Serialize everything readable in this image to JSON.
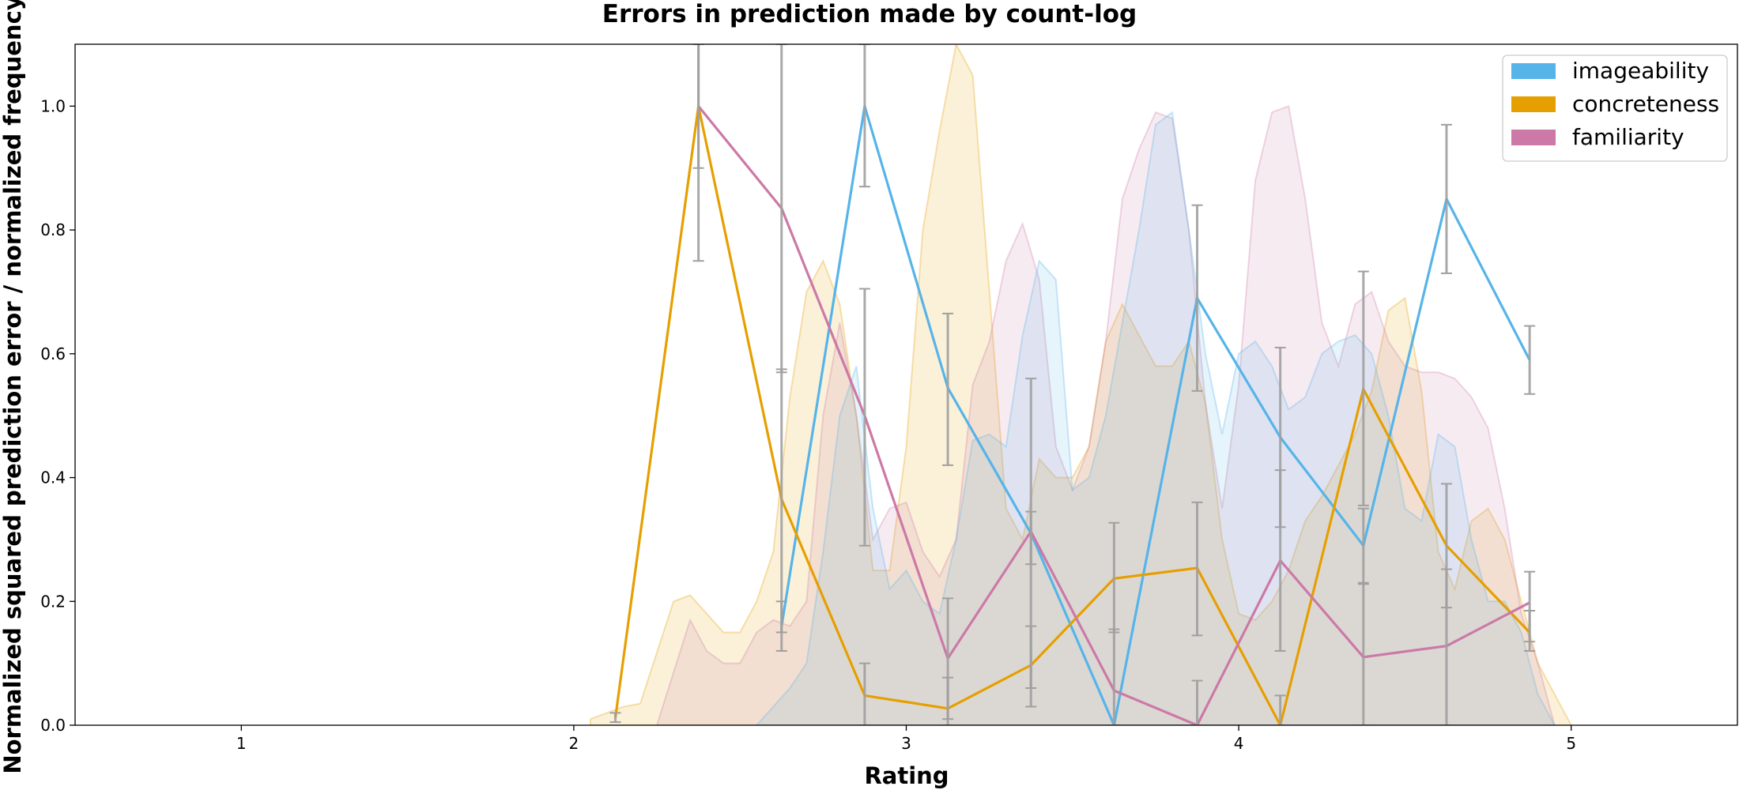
{
  "chart_data": {
    "type": "line",
    "title": "Errors in prediction made by count-log",
    "xlabel": "Rating",
    "ylabel": "Normalized squared prediction error / normalized frequency",
    "xlim": [
      0.5,
      5.5
    ],
    "ylim": [
      0,
      1.1
    ],
    "xticks": [
      "1",
      "2",
      "3",
      "4",
      "5"
    ],
    "xtick_values": [
      1,
      2,
      3,
      4,
      5
    ],
    "yticks": [
      "0.0",
      "0.2",
      "0.4",
      "0.6",
      "0.8",
      "1.0"
    ],
    "ytick_values": [
      0,
      0.2,
      0.4,
      0.6,
      0.8,
      1.0
    ],
    "legend_position": "top-right",
    "grid": false,
    "colors": {
      "imageability": "#56B4E9",
      "concreteness": "#E69F00",
      "familiarity": "#CC79A7",
      "errorbar": "#a0a0a0"
    },
    "series": [
      {
        "name": "imageability",
        "x": [
          2.625,
          2.875,
          3.125,
          3.375,
          3.625,
          3.875,
          4.125,
          4.375,
          4.625,
          4.875
        ],
        "y": [
          0.16,
          1.0,
          0.545,
          0.31,
          0.0,
          0.69,
          0.465,
          0.29,
          0.85,
          0.59
        ],
        "err_low": [
          0.12,
          0.87,
          0.42,
          0.26,
          0.0,
          0.54,
          0.32,
          0.23,
          0.73,
          0.535
        ],
        "err_high": [
          0.2,
          1.1,
          0.665,
          0.345,
          0.0,
          0.84,
          0.61,
          0.35,
          0.97,
          0.645
        ]
      },
      {
        "name": "concreteness",
        "x": [
          2.125,
          2.375,
          2.625,
          2.875,
          3.125,
          3.375,
          3.625,
          3.875,
          4.125,
          4.375,
          4.625,
          4.875
        ],
        "y": [
          0.012,
          1.0,
          0.365,
          0.048,
          0.027,
          0.097,
          0.237,
          0.254,
          0.0,
          0.543,
          0.29,
          0.15
        ],
        "err_low": [
          0.005,
          0.9,
          0.15,
          0.0,
          0.01,
          0.03,
          0.15,
          0.145,
          0.0,
          0.355,
          0.19,
          0.12
        ],
        "err_high": [
          0.02,
          1.1,
          0.575,
          0.1,
          0.077,
          0.16,
          0.327,
          0.36,
          0.048,
          0.733,
          0.39,
          0.185
        ]
      },
      {
        "name": "familiarity",
        "x": [
          2.375,
          2.625,
          2.875,
          3.125,
          3.375,
          3.625,
          3.875,
          4.125,
          4.375,
          4.625,
          4.875
        ],
        "y": [
          1.0,
          0.835,
          0.5,
          0.108,
          0.313,
          0.056,
          0.0,
          0.266,
          0.11,
          0.128,
          0.198
        ],
        "err_low": [
          0.75,
          0.57,
          0.29,
          0.0,
          0.06,
          0.0,
          0.0,
          0.12,
          0.0,
          0.0,
          0.135
        ],
        "err_high": [
          1.1,
          1.1,
          0.705,
          0.205,
          0.56,
          0.155,
          0.072,
          0.412,
          0.228,
          0.252,
          0.248
        ]
      }
    ],
    "frequency_areas": [
      {
        "name": "concreteness",
        "x": [
          2.05,
          2.15,
          2.2,
          2.3,
          2.35,
          2.4,
          2.45,
          2.5,
          2.55,
          2.6,
          2.65,
          2.7,
          2.75,
          2.8,
          2.85,
          2.9,
          2.95,
          3.0,
          3.05,
          3.1,
          3.15,
          3.2,
          3.25,
          3.3,
          3.35,
          3.4,
          3.45,
          3.5,
          3.55,
          3.6,
          3.65,
          3.7,
          3.75,
          3.8,
          3.85,
          3.9,
          3.95,
          4.0,
          4.05,
          4.1,
          4.15,
          4.2,
          4.25,
          4.3,
          4.35,
          4.4,
          4.45,
          4.5,
          4.55,
          4.6,
          4.65,
          4.7,
          4.75,
          4.8,
          4.85,
          4.9,
          4.95,
          5.0
        ],
        "y": [
          0.01,
          0.03,
          0.035,
          0.2,
          0.21,
          0.18,
          0.15,
          0.15,
          0.2,
          0.28,
          0.53,
          0.7,
          0.75,
          0.68,
          0.5,
          0.25,
          0.25,
          0.45,
          0.8,
          0.96,
          1.1,
          1.05,
          0.7,
          0.35,
          0.3,
          0.43,
          0.4,
          0.4,
          0.45,
          0.62,
          0.68,
          0.63,
          0.58,
          0.58,
          0.62,
          0.52,
          0.3,
          0.18,
          0.17,
          0.2,
          0.25,
          0.33,
          0.37,
          0.42,
          0.47,
          0.54,
          0.67,
          0.69,
          0.54,
          0.28,
          0.22,
          0.33,
          0.35,
          0.3,
          0.2,
          0.1,
          0.05,
          0.0
        ]
      },
      {
        "name": "familiarity",
        "x": [
          2.25,
          2.35,
          2.4,
          2.45,
          2.5,
          2.55,
          2.6,
          2.65,
          2.7,
          2.75,
          2.8,
          2.85,
          2.9,
          2.95,
          3.0,
          3.05,
          3.1,
          3.15,
          3.2,
          3.25,
          3.3,
          3.35,
          3.4,
          3.45,
          3.5,
          3.55,
          3.6,
          3.65,
          3.7,
          3.75,
          3.8,
          3.85,
          3.9,
          3.95,
          4.0,
          4.05,
          4.1,
          4.15,
          4.2,
          4.25,
          4.3,
          4.35,
          4.4,
          4.45,
          4.5,
          4.55,
          4.6,
          4.65,
          4.7,
          4.75,
          4.8,
          4.85,
          4.9,
          4.95
        ],
        "y": [
          0.0,
          0.17,
          0.12,
          0.1,
          0.1,
          0.15,
          0.17,
          0.16,
          0.2,
          0.5,
          0.65,
          0.5,
          0.3,
          0.35,
          0.36,
          0.28,
          0.24,
          0.3,
          0.55,
          0.62,
          0.75,
          0.81,
          0.72,
          0.45,
          0.38,
          0.45,
          0.62,
          0.85,
          0.93,
          0.99,
          0.98,
          0.8,
          0.52,
          0.35,
          0.55,
          0.88,
          0.99,
          1.0,
          0.85,
          0.65,
          0.58,
          0.68,
          0.7,
          0.62,
          0.58,
          0.57,
          0.57,
          0.56,
          0.53,
          0.48,
          0.35,
          0.18,
          0.1,
          0.0
        ]
      },
      {
        "name": "imageability",
        "x": [
          2.55,
          2.6,
          2.65,
          2.7,
          2.75,
          2.8,
          2.85,
          2.9,
          2.95,
          3.0,
          3.05,
          3.1,
          3.15,
          3.2,
          3.25,
          3.3,
          3.35,
          3.4,
          3.45,
          3.5,
          3.55,
          3.6,
          3.65,
          3.7,
          3.75,
          3.8,
          3.85,
          3.9,
          3.95,
          4.0,
          4.05,
          4.1,
          4.15,
          4.2,
          4.25,
          4.3,
          4.35,
          4.4,
          4.45,
          4.5,
          4.55,
          4.6,
          4.65,
          4.7,
          4.75,
          4.8,
          4.85,
          4.9,
          4.95
        ],
        "y": [
          0.0,
          0.03,
          0.06,
          0.1,
          0.28,
          0.5,
          0.58,
          0.35,
          0.22,
          0.25,
          0.2,
          0.18,
          0.3,
          0.46,
          0.47,
          0.45,
          0.63,
          0.75,
          0.72,
          0.38,
          0.4,
          0.5,
          0.65,
          0.8,
          0.97,
          0.99,
          0.8,
          0.6,
          0.47,
          0.6,
          0.62,
          0.58,
          0.51,
          0.53,
          0.6,
          0.62,
          0.63,
          0.6,
          0.5,
          0.35,
          0.33,
          0.47,
          0.45,
          0.3,
          0.2,
          0.2,
          0.15,
          0.05,
          0.0
        ]
      }
    ]
  }
}
